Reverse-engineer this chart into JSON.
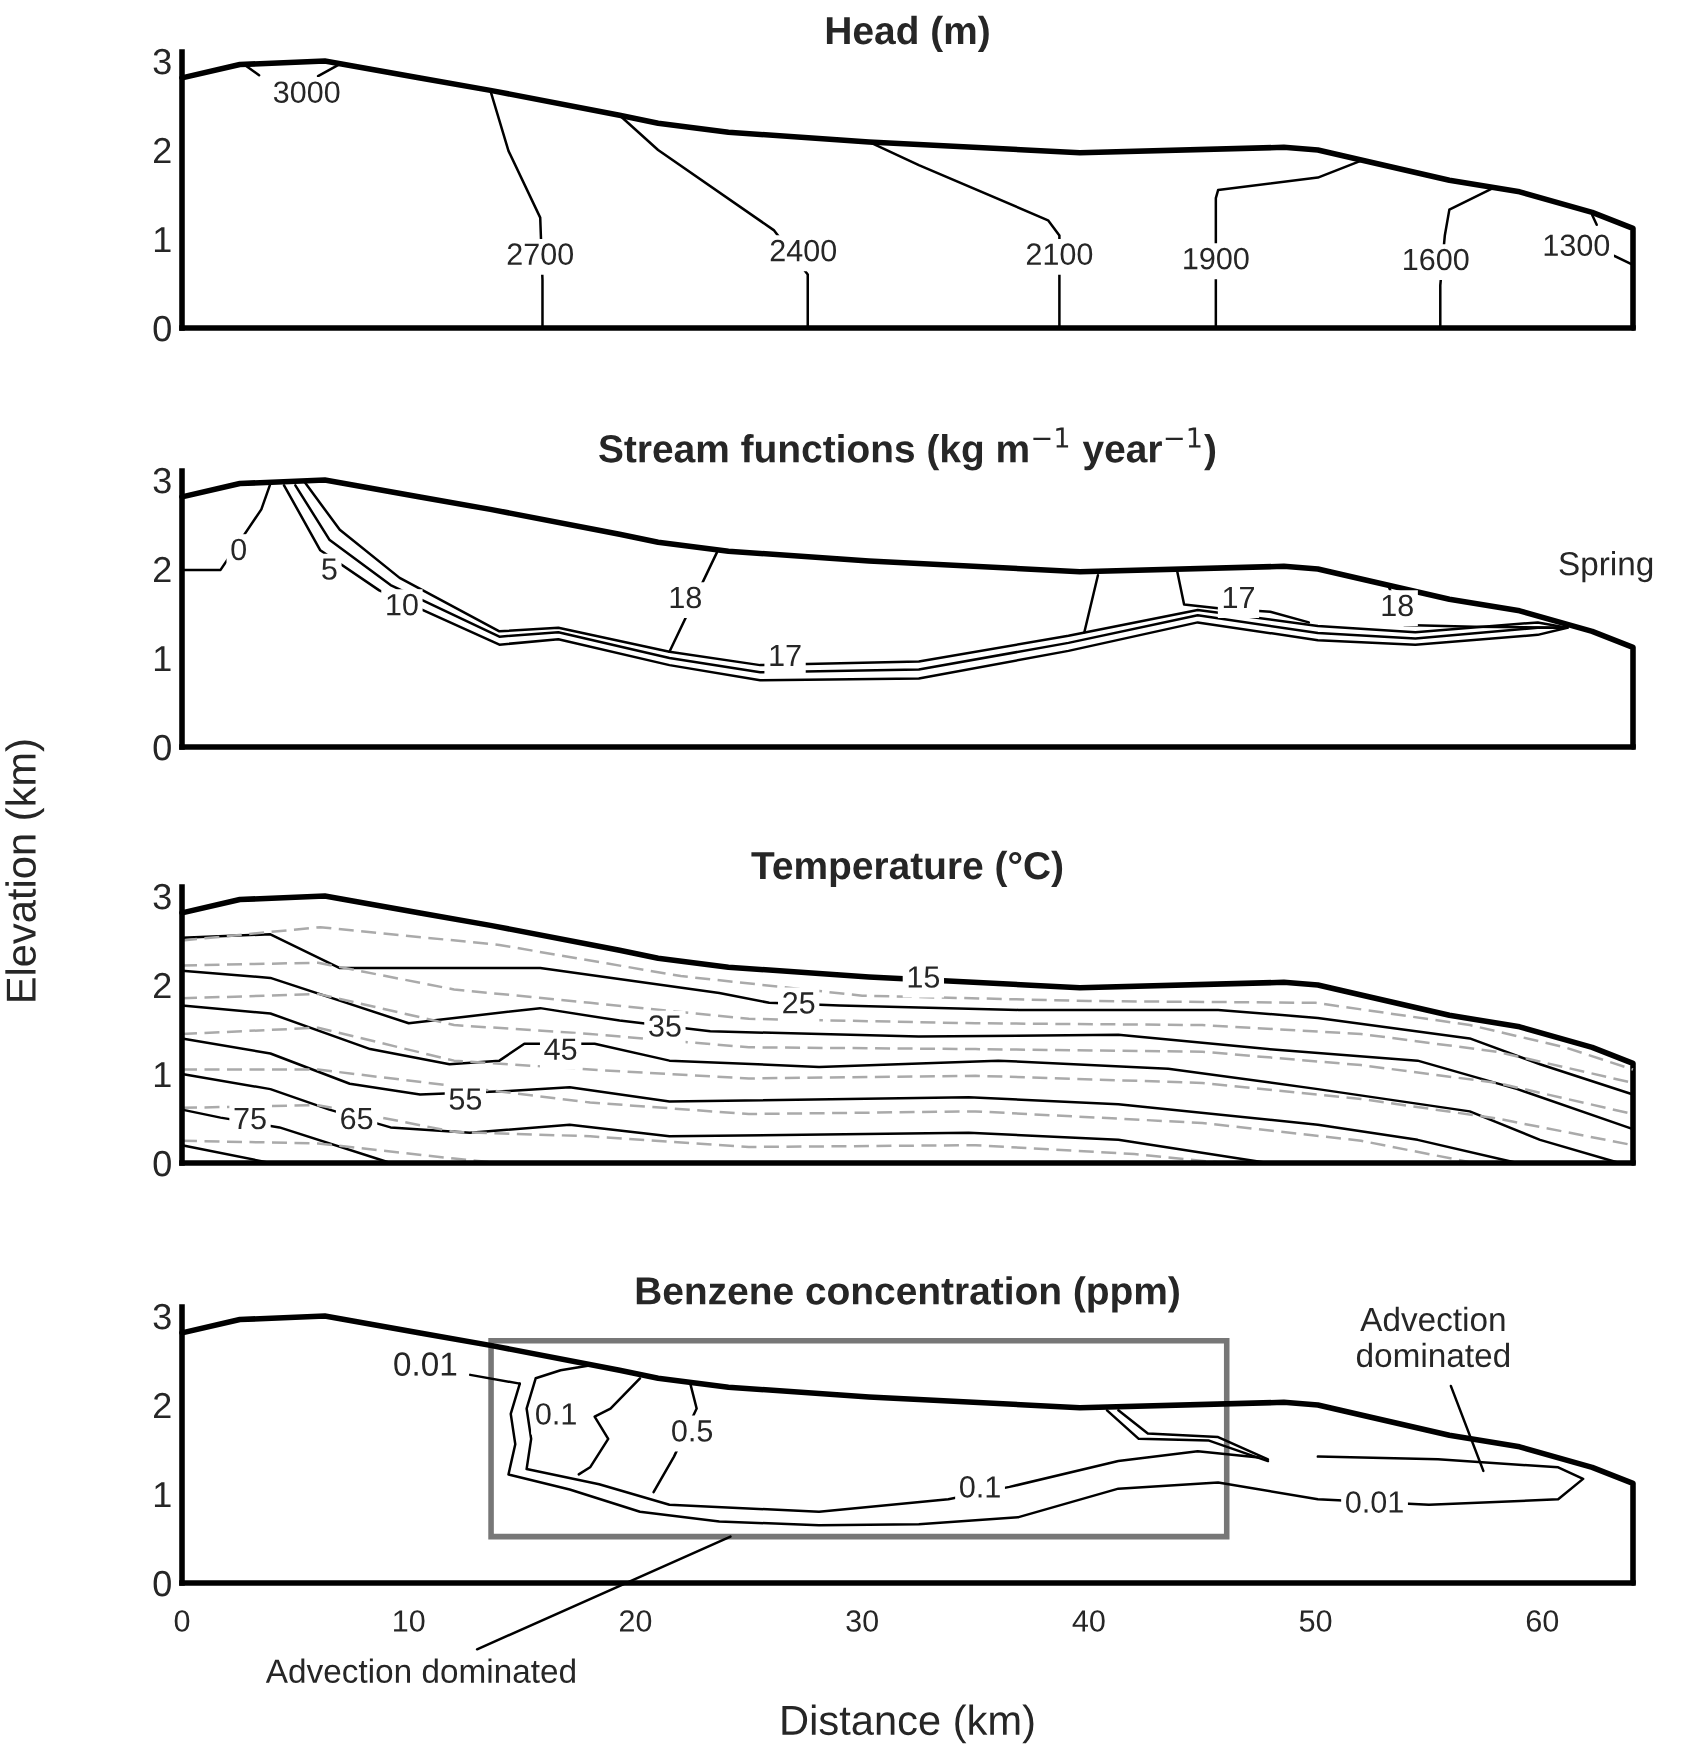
{
  "chart_data": [
    {
      "type": "line",
      "title": "Head (m)",
      "xlim": [
        0,
        64
      ],
      "ylim": [
        0,
        3.1
      ],
      "xticks": [
        0,
        10,
        20,
        30,
        40,
        50,
        60
      ],
      "yticks": [
        0,
        1,
        2,
        3
      ],
      "tick_labels": "y",
      "grid": false,
      "series": [
        {
          "color": "#000000",
          "x": [
            0,
            2.55,
            6.3,
            10.5,
            13.6,
            19.3,
            21,
            24.1,
            30.3,
            39.6,
            48.6,
            50.1,
            52.3,
            55.9,
            59,
            62.2,
            64,
            64
          ],
          "values": [
            2.81,
            2.96,
            3.0,
            2.81,
            2.67,
            2.39,
            2.3,
            2.2,
            2.09,
            1.97,
            2.03,
            2.0,
            1.87,
            1.66,
            1.53,
            1.3,
            1.12,
            0
          ]
        },
        {
          "color": "#000000",
          "x": [
            2.8,
            3.4
          ],
          "values": [
            2.95,
            2.84
          ]
        },
        {
          "color": "#000000",
          "x": [
            6.0,
            7.0
          ],
          "values": [
            2.83,
            2.97
          ]
        },
        {
          "color": "#000000",
          "x": [
            13.6,
            14.4,
            15.8,
            15.9,
            15.9
          ],
          "values": [
            2.67,
            1.99,
            1.24,
            0.54,
            0
          ]
        },
        {
          "color": "#000000",
          "x": [
            19.3,
            21.0,
            26.1,
            27.6,
            27.6
          ],
          "values": [
            2.39,
            2.0,
            1.1,
            0.6,
            0
          ]
        },
        {
          "color": "#000000",
          "x": [
            30.3,
            32.5,
            38.2,
            38.7,
            38.7,
            38.7
          ],
          "values": [
            2.09,
            1.83,
            1.21,
            1.04,
            0.54,
            0
          ]
        },
        {
          "color": "#000000",
          "x": [
            52.1,
            50.1,
            45.7,
            45.6,
            45.6,
            45.6,
            45.6
          ],
          "values": [
            1.89,
            1.69,
            1.55,
            1.46,
            1.1,
            0.45,
            0
          ]
        },
        {
          "color": "#000000",
          "x": [
            57.8,
            55.9,
            55.7,
            55.5,
            55.5
          ],
          "values": [
            1.57,
            1.33,
            1.04,
            0.48,
            0
          ]
        },
        {
          "color": "#000000",
          "x": [
            62.2,
            62.4
          ],
          "values": [
            1.27,
            1.16
          ]
        },
        {
          "color": "#000000",
          "x": [
            63.1,
            64
          ],
          "values": [
            0.82,
            0.71
          ]
        }
      ],
      "annotations": [
        {
          "text": "3000",
          "x": 5.5,
          "y": 2.62
        },
        {
          "text": "2700",
          "x": 15.8,
          "y": 0.8
        },
        {
          "text": "2400",
          "x": 27.4,
          "y": 0.84
        },
        {
          "text": "2100",
          "x": 38.7,
          "y": 0.8
        },
        {
          "text": "1900",
          "x": 45.6,
          "y": 0.75
        },
        {
          "text": "1600",
          "x": 55.3,
          "y": 0.74
        },
        {
          "text": "1300",
          "x": 61.5,
          "y": 0.9
        }
      ]
    },
    {
      "type": "line",
      "title": "Stream functions (kg m$^{−1}$ year$^{−1}$)",
      "ylabel": "Elevation (km)",
      "xlim": [
        0,
        64
      ],
      "ylim": [
        0,
        3.1
      ],
      "xticks": [
        0,
        10,
        20,
        30,
        40,
        50,
        60
      ],
      "yticks": [
        0,
        1,
        2,
        3
      ],
      "tick_labels": "y",
      "grid": false,
      "series": [
        {
          "color": "#000000",
          "x": [
            0,
            2.55,
            6.3,
            10.5,
            13.6,
            19.3,
            21,
            24.1,
            30.3,
            39.6,
            48.6,
            50.1,
            52.3,
            55.9,
            59,
            62.2,
            64,
            64
          ],
          "values": [
            2.81,
            2.96,
            3.0,
            2.81,
            2.67,
            2.39,
            2.3,
            2.2,
            2.09,
            1.97,
            2.03,
            2.0,
            1.87,
            1.66,
            1.53,
            1.3,
            1.12,
            0
          ]
        },
        {
          "color": "#000000",
          "x": [
            3.9,
            3.5,
            1.7,
            0
          ],
          "values": [
            2.96,
            2.67,
            1.99,
            1.99
          ]
        },
        {
          "color": "#000000",
          "x": [
            4.5,
            6.1,
            8.7,
            14.0,
            16.6,
            21.5,
            25.5,
            32.5,
            39.1,
            44.8,
            50.1,
            54.4,
            59.8,
            61.1
          ],
          "values": [
            2.94,
            2.21,
            1.76,
            1.15,
            1.21,
            0.92,
            0.75,
            0.77,
            1.08,
            1.4,
            1.2,
            1.15,
            1.26,
            1.34
          ]
        },
        {
          "color": "#000000",
          "x": [
            5.0,
            6.5,
            9.2,
            14.0,
            16.6,
            21.5,
            25.5,
            32.5,
            39.1,
            44.8,
            50.1,
            54.4,
            59.8,
            61.1
          ],
          "values": [
            2.94,
            2.33,
            1.82,
            1.24,
            1.29,
            1.0,
            0.84,
            0.87,
            1.17,
            1.48,
            1.28,
            1.22,
            1.34,
            1.34
          ]
        },
        {
          "color": "#000000",
          "x": [
            5.4,
            6.96,
            9.6,
            14.0,
            16.6,
            21.5,
            25.5,
            32.5,
            39.1,
            44.8,
            50.1,
            54.4,
            59.8,
            61.1
          ],
          "values": [
            2.98,
            2.44,
            1.9,
            1.3,
            1.34,
            1.07,
            0.92,
            0.96,
            1.25,
            1.54,
            1.36,
            1.29,
            1.4,
            1.34
          ]
        },
        {
          "color": "#000000",
          "x": [
            21.5,
            23.6
          ],
          "values": [
            1.07,
            2.19
          ]
        },
        {
          "color": "#000000",
          "x": [
            40.4,
            39.8
          ],
          "values": [
            1.93,
            1.29
          ]
        },
        {
          "color": "#000000",
          "x": [
            43.9,
            44.2,
            45.7,
            48,
            49.7
          ],
          "values": [
            1.97,
            1.6,
            1.56,
            1.52,
            1.4
          ]
        },
        {
          "color": "#000000",
          "x": [
            53.2,
            53.9,
            57,
            61.1
          ],
          "values": [
            1.82,
            1.37,
            1.35,
            1.34
          ]
        }
      ],
      "annotations": [
        {
          "text": "0",
          "x": 2.5,
          "y": 2.19
        },
        {
          "text": "5",
          "x": 6.5,
          "y": 1.97
        },
        {
          "text": "10",
          "x": 9.7,
          "y": 1.57
        },
        {
          "text": "18",
          "x": 22.2,
          "y": 1.65
        },
        {
          "text": "17",
          "x": 26.6,
          "y": 1.0
        },
        {
          "text": "17",
          "x": 46.6,
          "y": 1.65
        },
        {
          "text": "18",
          "x": 53.6,
          "y": 1.56
        },
        {
          "text": "Spring",
          "x": 61.1,
          "y": 1.34
        }
      ]
    },
    {
      "type": "line",
      "title": "Temperature (°C)",
      "xlim": [
        0,
        64
      ],
      "ylim": [
        0,
        3.1
      ],
      "xticks": [
        0,
        10,
        20,
        30,
        40,
        50,
        60
      ],
      "yticks": [
        0,
        1,
        2,
        3
      ],
      "tick_labels": "y",
      "grid": false,
      "series": [
        {
          "color": "#000000",
          "x": [
            0,
            2.55,
            6.3,
            10.5,
            13.6,
            19.3,
            21,
            24.1,
            30.3,
            39.6,
            48.6,
            50.1,
            52.3,
            55.9,
            59,
            62.2,
            64,
            64
          ],
          "values": [
            2.81,
            2.96,
            3.0,
            2.81,
            2.67,
            2.39,
            2.3,
            2.2,
            2.09,
            1.97,
            2.03,
            2.0,
            1.87,
            1.66,
            1.53,
            1.3,
            1.12,
            0
          ]
        },
        {
          "color": "#000000",
          "x": [
            0,
            3.9,
            6.96,
            15.8,
            23.7,
            25.9,
            29.0,
            36.9,
            45.7,
            50.1,
            56.8,
            59.9,
            64
          ],
          "values": [
            2.53,
            2.57,
            2.19,
            2.19,
            1.91,
            1.8,
            1.77,
            1.72,
            1.72,
            1.63,
            1.4,
            1.11,
            0.77
          ]
        },
        {
          "color": "#000000",
          "x": [
            0,
            3.9,
            10.0,
            15.8,
            19.3,
            23.3,
            32.5,
            41.3,
            47.9,
            54.5,
            58.9,
            64
          ],
          "values": [
            2.16,
            2.08,
            1.57,
            1.74,
            1.6,
            1.48,
            1.42,
            1.44,
            1.28,
            1.15,
            0.83,
            0.38
          ]
        },
        {
          "color": "#000000",
          "x": [
            0,
            3.9,
            8.3,
            11.8,
            14.0,
            15.1,
            18.2,
            21.5,
            28.1,
            36.0,
            43.5,
            50.1,
            56.8,
            59.9,
            63.4
          ],
          "values": [
            1.77,
            1.68,
            1.28,
            1.11,
            1.15,
            1.34,
            1.34,
            1.15,
            1.08,
            1.15,
            1.06,
            0.83,
            0.58,
            0.26,
            0
          ]
        },
        {
          "color": "#000000",
          "x": [
            0,
            3.9,
            7.4,
            10.5,
            14.4,
            17.1,
            21.5,
            34.7,
            41.3,
            50.1,
            54.5,
            58.9
          ],
          "values": [
            1.4,
            1.23,
            0.89,
            0.77,
            0.81,
            0.85,
            0.69,
            0.74,
            0.66,
            0.43,
            0.26,
            0
          ]
        },
        {
          "color": "#000000",
          "x": [
            0,
            3.9,
            6.5,
            9.2,
            12.7,
            17.1,
            21.5,
            34.7,
            41.3,
            47.9
          ],
          "values": [
            1.0,
            0.83,
            0.6,
            0.4,
            0.34,
            0.43,
            0.3,
            0.34,
            0.26,
            0
          ]
        },
        {
          "color": "#000000",
          "x": [
            0,
            1.7,
            4.3,
            9.2
          ],
          "values": [
            0.6,
            0.51,
            0.4,
            0
          ]
        },
        {
          "color": "#000000",
          "x": [
            0,
            3.9
          ],
          "values": [
            0.2,
            0
          ]
        },
        {
          "color": "#aaaaaa",
          "line_style": "dashed",
          "x": [
            0,
            6.1,
            14,
            22,
            30,
            40,
            50,
            56.8,
            61,
            64
          ],
          "values": [
            2.5,
            2.65,
            2.45,
            2.1,
            1.88,
            1.82,
            1.8,
            1.55,
            1.3,
            1.05
          ]
        },
        {
          "color": "#aaaaaa",
          "line_style": "dashed",
          "x": [
            0,
            6,
            12,
            18,
            25,
            35,
            45,
            52,
            58,
            64
          ],
          "values": [
            2.22,
            2.25,
            1.95,
            1.8,
            1.62,
            1.57,
            1.55,
            1.45,
            1.25,
            0.9
          ]
        },
        {
          "color": "#aaaaaa",
          "line_style": "dashed",
          "x": [
            0,
            6,
            12,
            18,
            25,
            35,
            45,
            52,
            58,
            64
          ],
          "values": [
            1.85,
            1.9,
            1.55,
            1.45,
            1.3,
            1.28,
            1.25,
            1.1,
            0.9,
            0.55
          ]
        },
        {
          "color": "#aaaaaa",
          "line_style": "dashed",
          "x": [
            0,
            6,
            12,
            18,
            25,
            35,
            45,
            52,
            58,
            64
          ],
          "values": [
            1.45,
            1.52,
            1.15,
            1.05,
            0.95,
            0.98,
            0.9,
            0.72,
            0.5,
            0.2
          ]
        },
        {
          "color": "#aaaaaa",
          "line_style": "dashed",
          "x": [
            0,
            6,
            18,
            25,
            35,
            45,
            52,
            57
          ],
          "values": [
            1.05,
            1.05,
            0.68,
            0.55,
            0.58,
            0.45,
            0.25,
            0
          ]
        },
        {
          "color": "#aaaaaa",
          "line_style": "dashed",
          "x": [
            0,
            6,
            12,
            18,
            25,
            35,
            42,
            46
          ],
          "values": [
            0.62,
            0.65,
            0.35,
            0.3,
            0.18,
            0.2,
            0.1,
            0
          ]
        },
        {
          "color": "#aaaaaa",
          "line_style": "dashed",
          "x": [
            0,
            6,
            12,
            14
          ],
          "values": [
            0.25,
            0.22,
            0.05,
            0
          ]
        }
      ],
      "annotations": [
        {
          "text": "15",
          "x": 32.7,
          "y": 2.06
        },
        {
          "text": "25",
          "x": 27.2,
          "y": 1.77
        },
        {
          "text": "35",
          "x": 21.3,
          "y": 1.51
        },
        {
          "text": "45",
          "x": 16.7,
          "y": 1.25
        },
        {
          "text": "55",
          "x": 12.5,
          "y": 0.69
        },
        {
          "text": "65",
          "x": 7.7,
          "y": 0.47
        },
        {
          "text": "75",
          "x": 3.0,
          "y": 0.47
        }
      ]
    },
    {
      "type": "line",
      "title": "Benzene concentration (ppm)",
      "xlabel": "Distance (km)",
      "xlim": [
        0,
        64
      ],
      "ylim": [
        0,
        3.1
      ],
      "xticks": [
        0,
        10,
        20,
        30,
        40,
        50,
        60
      ],
      "yticks": [
        0,
        1,
        2,
        3
      ],
      "grid": false,
      "series": [
        {
          "color": "#000000",
          "x": [
            0,
            2.55,
            6.3,
            10.5,
            13.6,
            19.3,
            21,
            24.1,
            30.3,
            39.6,
            48.6,
            50.1,
            52.3,
            55.9,
            59,
            62.2,
            64,
            64
          ],
          "values": [
            2.81,
            2.96,
            3.0,
            2.81,
            2.67,
            2.39,
            2.3,
            2.2,
            2.09,
            1.97,
            2.03,
            2.0,
            1.87,
            1.66,
            1.53,
            1.3,
            1.12,
            0
          ]
        },
        {
          "color": "#000000",
          "x": [
            14.9,
            14.5,
            14.7,
            14.4,
            17.1,
            20.2,
            23.7,
            28.1,
            32.5,
            36.9,
            41.3,
            45.7,
            50.1,
            55.0,
            60.7,
            61.8,
            60.7,
            55.4,
            50.1
          ],
          "values": [
            2.24,
            1.9,
            1.56,
            1.22,
            1.05,
            0.8,
            0.69,
            0.65,
            0.66,
            0.74,
            1.06,
            1.13,
            0.94,
            0.88,
            0.94,
            1.17,
            1.3,
            1.39,
            1.42
          ]
        },
        {
          "color": "#000000",
          "x": [
            17.9,
            16.7,
            15.6,
            15.2,
            15.4,
            15.2,
            18.4,
            21.5,
            28.1,
            33.8,
            36.5,
            41.3,
            44.8,
            47.5
          ],
          "values": [
            2.44,
            2.39,
            2.3,
            1.96,
            1.62,
            1.28,
            1.11,
            0.88,
            0.8,
            0.94,
            1.08,
            1.37,
            1.48,
            1.41
          ]
        },
        {
          "color": "#000000",
          "x": [
            20.2,
            18.9,
            18.2,
            18.8,
            18.0,
            17.5
          ],
          "values": [
            2.3,
            1.96,
            1.87,
            1.62,
            1.3,
            1.22
          ]
        },
        {
          "color": "#000000",
          "x": [
            22.4,
            22.7,
            21.7,
            20.8
          ],
          "values": [
            2.26,
            1.96,
            1.42,
            1.02
          ]
        },
        {
          "color": "#000000",
          "x": [
            40.8,
            42.2,
            45.3,
            47.9
          ],
          "values": [
            1.94,
            1.62,
            1.6,
            1.37
          ]
        },
        {
          "color": "#000000",
          "x": [
            41.3,
            42.6,
            45.7,
            47.9
          ],
          "values": [
            1.94,
            1.68,
            1.64,
            1.39
          ]
        }
      ],
      "annotations": [
        {
          "text": "0.01",
          "x": 14.9,
          "y": 2.24
        },
        {
          "text": "0.1",
          "x": 16.5,
          "y": 1.87
        },
        {
          "text": "0.5",
          "x": 22.5,
          "y": 1.68
        },
        {
          "text": "0.1",
          "x": 35.2,
          "y": 1.05
        },
        {
          "text": "0.01",
          "x": 52.6,
          "y": 0.88
        },
        {
          "text": "Advection\ndominated",
          "x": 57.4,
          "y": 1.26
        },
        "Advection dominated"
      ]
    }
  ]
}
